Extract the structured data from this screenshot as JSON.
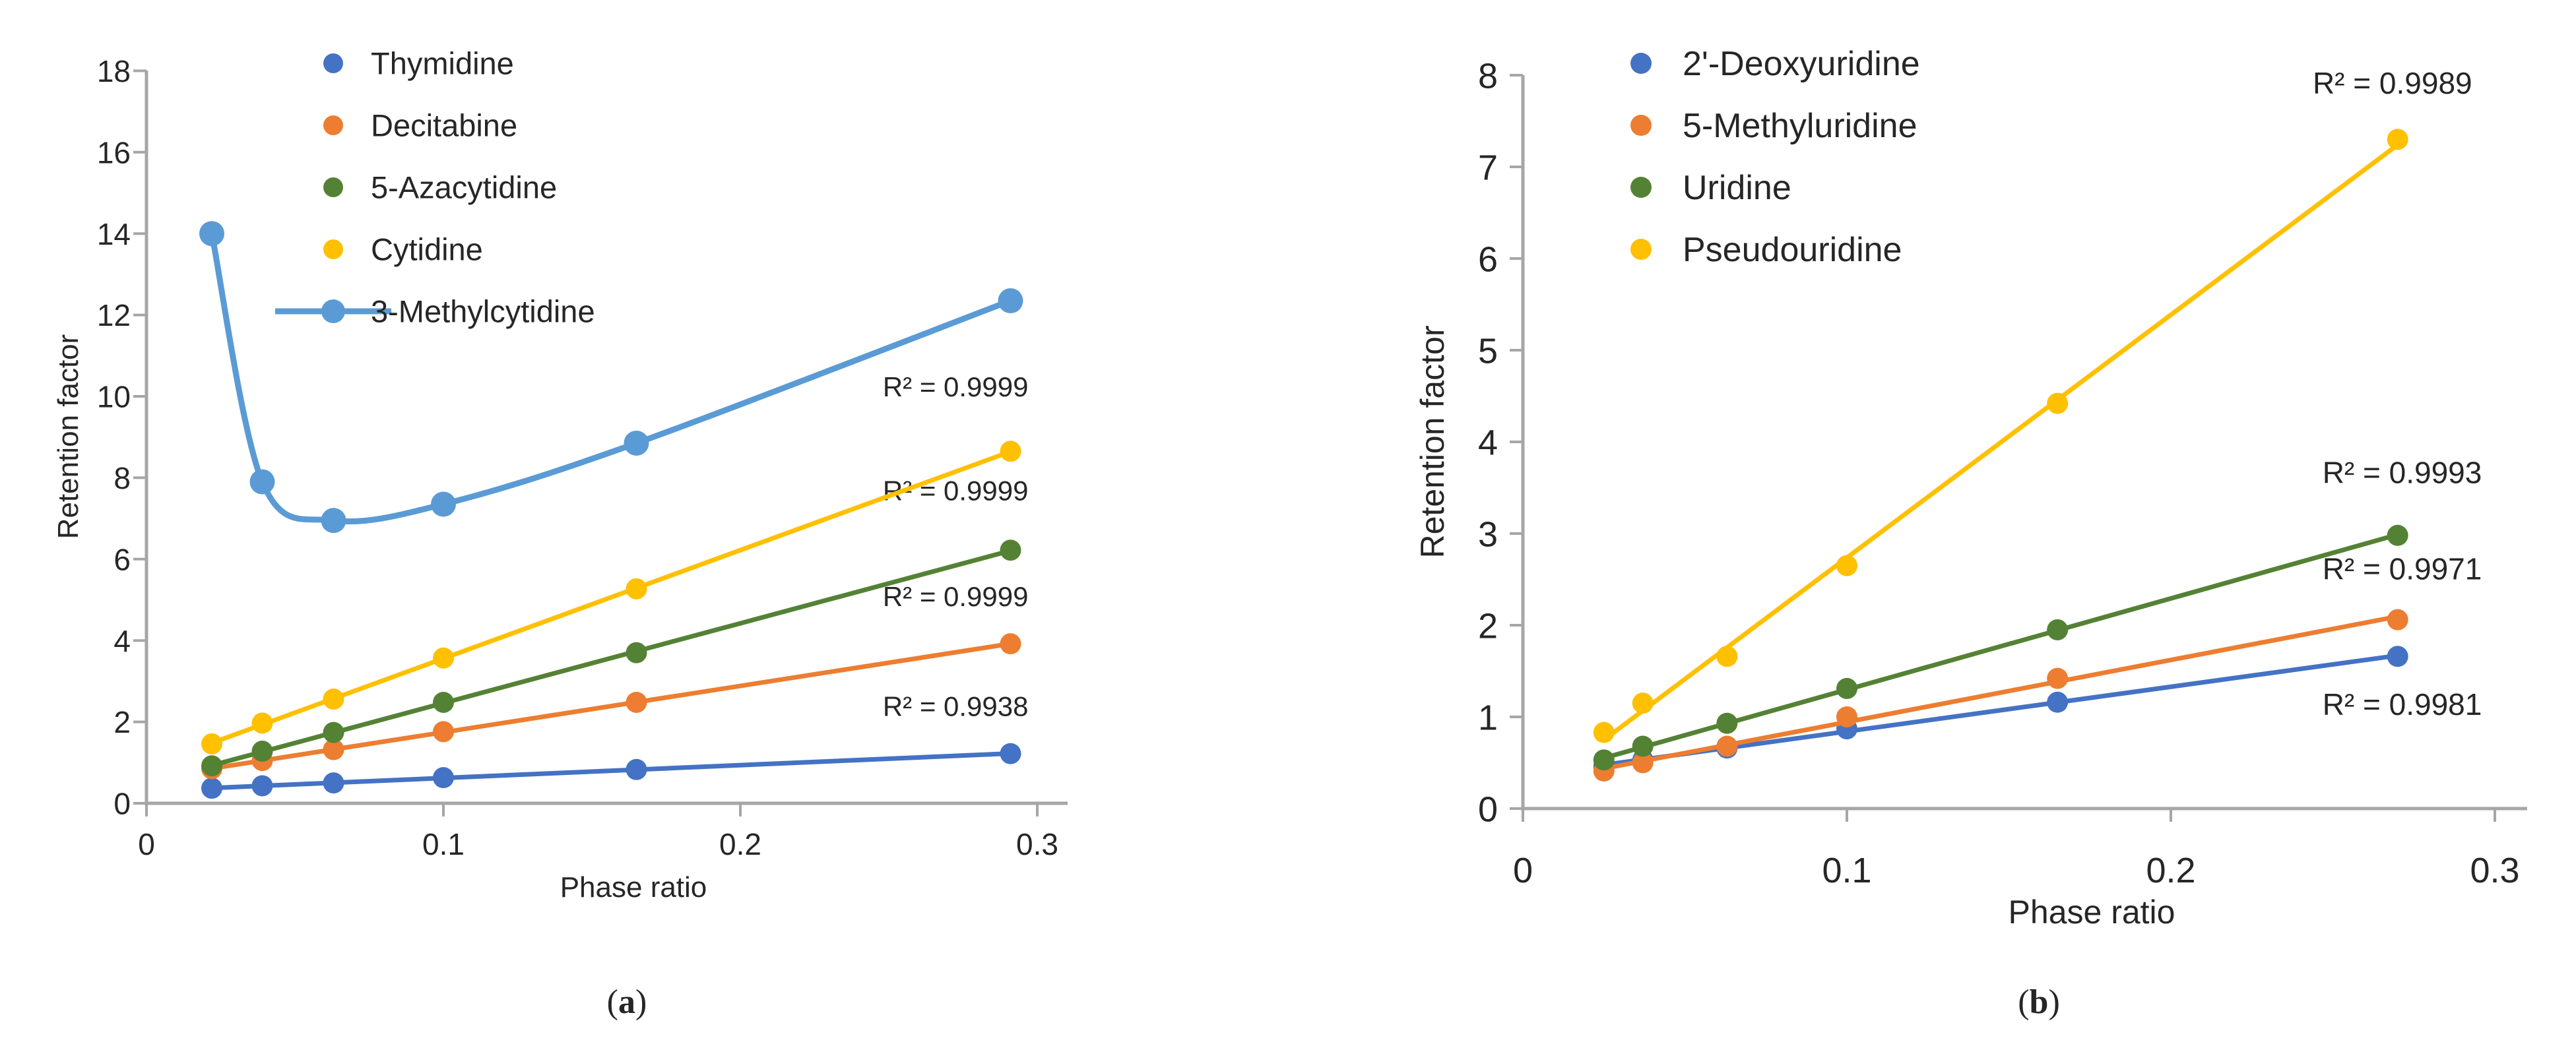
{
  "figure": {
    "background": "#ffffff",
    "axis_color": "#A6A6A6",
    "text_color": "#262626"
  },
  "chart_data": [
    {
      "id": "a",
      "type": "scatter",
      "caption": "(a)",
      "xlabel": "Phase ratio",
      "ylabel": "Retention factor",
      "xlim": [
        0,
        0.32
      ],
      "ylim": [
        0,
        18
      ],
      "xticks": [
        0,
        0.1,
        0.2,
        0.3
      ],
      "xtick_labels": [
        "0",
        "0.1",
        "0.2",
        "0.3"
      ],
      "yticks": [
        0,
        2,
        4,
        6,
        8,
        10,
        12,
        14,
        16,
        18
      ],
      "ytick_labels": [
        "0",
        "2",
        "4",
        "6",
        "8",
        "10",
        "12",
        "14",
        "16",
        "18"
      ],
      "grid": false,
      "legend_position": "top-left-inside",
      "x": [
        0.022,
        0.039,
        0.063,
        0.1,
        0.165,
        0.291
      ],
      "series": [
        {
          "name": "Thymidine",
          "color": "#4472C4",
          "line": "trend",
          "values": [
            0.37,
            0.43,
            0.5,
            0.63,
            0.83,
            1.22
          ],
          "r2_label": "R² = 0.9938",
          "r2_at": {
            "x": 0.297,
            "y": 2.15
          }
        },
        {
          "name": "Decitabine",
          "color": "#ED7D31",
          "line": "trend",
          "values": [
            0.85,
            1.05,
            1.32,
            1.76,
            2.48,
            3.92
          ],
          "r2_label": "R² = 0.9999",
          "r2_at": {
            "x": 0.297,
            "y": 4.85
          }
        },
        {
          "name": "5-Azacytidine",
          "color": "#548235",
          "line": "trend",
          "values": [
            0.92,
            1.28,
            1.74,
            2.48,
            3.7,
            6.22
          ],
          "r2_label": "R² = 0.9999",
          "r2_at": {
            "x": 0.297,
            "y": 7.45
          }
        },
        {
          "name": "Cytidine",
          "color": "#FFC000",
          "line": "trend",
          "values": [
            1.46,
            1.97,
            2.56,
            3.57,
            5.27,
            8.65
          ],
          "r2_label": "R² = 0.9999",
          "r2_at": {
            "x": 0.297,
            "y": 10.0
          }
        },
        {
          "name": "3-Methylcytidine",
          "color": "#5B9BD5",
          "line": "smooth",
          "legend_line": true,
          "values": [
            14.0,
            7.9,
            6.95,
            7.35,
            8.85,
            12.35
          ]
        }
      ]
    },
    {
      "id": "b",
      "type": "scatter",
      "caption": "(b)",
      "xlabel": "Phase ratio",
      "ylabel": "Retention factor",
      "xlim": [
        0,
        0.31
      ],
      "ylim": [
        0,
        8
      ],
      "xticks": [
        0,
        0.1,
        0.2,
        0.3
      ],
      "xtick_labels": [
        "0",
        "0.1",
        "0.2",
        "0.3"
      ],
      "yticks": [
        0,
        1,
        2,
        3,
        4,
        5,
        6,
        7,
        8
      ],
      "ytick_labels": [
        "0",
        "1",
        "2",
        "3",
        "4",
        "5",
        "6",
        "7",
        "8"
      ],
      "grid": false,
      "legend_position": "top-left-inside",
      "x": [
        0.025,
        0.037,
        0.063,
        0.1,
        0.165,
        0.27
      ],
      "series": [
        {
          "name": "2'-Deoxyuridine",
          "color": "#4472C4",
          "line": "trend",
          "values": [
            0.46,
            0.53,
            0.66,
            0.87,
            1.16,
            1.66
          ],
          "r2_label": "R² = 0.9981",
          "r2_at": {
            "x": 0.296,
            "y": 1.02
          }
        },
        {
          "name": "5-Methyluridine",
          "color": "#ED7D31",
          "line": "trend",
          "values": [
            0.41,
            0.5,
            0.68,
            1.0,
            1.42,
            2.06
          ],
          "r2_label": "R² = 0.9971",
          "r2_at": {
            "x": 0.296,
            "y": 2.5
          }
        },
        {
          "name": "Uridine",
          "color": "#548235",
          "line": "trend",
          "values": [
            0.53,
            0.68,
            0.93,
            1.31,
            1.95,
            2.98
          ],
          "r2_label": "R² = 0.9993",
          "r2_at": {
            "x": 0.296,
            "y": 3.55
          }
        },
        {
          "name": "Pseudouridine",
          "color": "#FFC000",
          "line": "trend",
          "values": [
            0.83,
            1.15,
            1.66,
            2.65,
            4.42,
            7.3
          ],
          "r2_label": "R² = 0.9989",
          "r2_at": {
            "x": 0.293,
            "y": 7.8
          }
        }
      ]
    }
  ]
}
